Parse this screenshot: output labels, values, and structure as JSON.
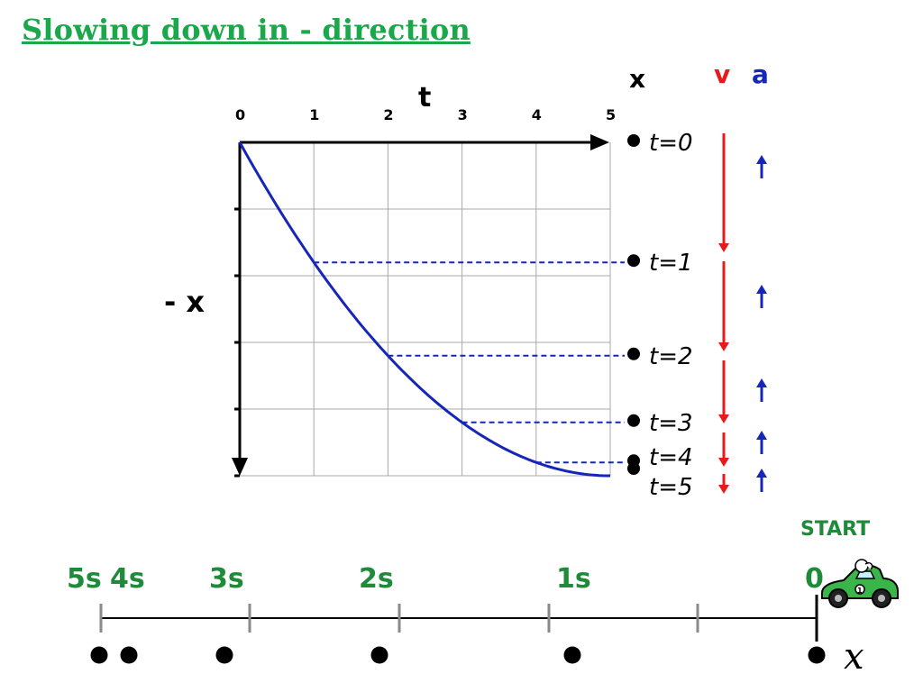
{
  "title": "Slowing down in - direction",
  "graph": {
    "t_axis_label": "t",
    "x_axis_label": "- x",
    "t_ticks": [
      "0",
      "1",
      "2",
      "3",
      "4",
      "5"
    ]
  },
  "columns": {
    "x_header": "x",
    "v_header": "v",
    "a_header": "a",
    "v_color": "#e8191a",
    "a_color": "#1526b8"
  },
  "time_labels": [
    "t=0",
    "t=1",
    "t=2",
    "t=3",
    "t=4",
    "t=5"
  ],
  "number_line": {
    "start_label": "START",
    "labels": [
      "5s",
      "4s",
      "3s",
      "2s",
      "1s",
      "0"
    ],
    "axis_symbol": "x"
  },
  "chart_data": {
    "type": "line",
    "description_free": true,
    "x": [
      0,
      1,
      2,
      3,
      4,
      5
    ],
    "series": [
      {
        "values": [
          0,
          -9,
          -16,
          -21,
          -24,
          -25
        ]
      }
    ],
    "xlim": [
      0,
      5
    ],
    "ylim": [
      -25,
      0
    ]
  },
  "colors": {
    "title": "#1aa84a",
    "curve": "#1526b8",
    "green_text": "#1f8a3a"
  }
}
